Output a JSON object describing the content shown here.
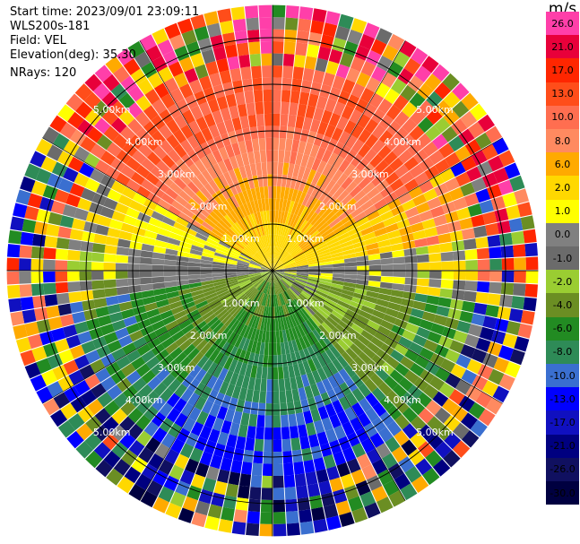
{
  "header": {
    "start_time": "Start time: 2023/09/01 23:09:11",
    "instrument": "WLS200s-181",
    "field": "Field: VEL",
    "elevation": "Elevation(deg): 35.30",
    "nrays": "NRays: 120"
  },
  "colorbar": {
    "units": "m/s",
    "labels": [
      "26.0",
      "21.0",
      "17.0",
      "13.0",
      "10.0",
      "8.0",
      "6.0",
      "2.0",
      "1.0",
      "0.0",
      "-1.0",
      "-2.0",
      "-4.0",
      "-6.0",
      "-8.0",
      "-10.0",
      "-13.0",
      "-17.0",
      "-21.0",
      "-26.0",
      "-30.0"
    ],
    "colors": [
      "#ff3fa9",
      "#e8003a",
      "#ff2600",
      "#ff4d1a",
      "#ff6e50",
      "#ff8a60",
      "#ffaa00",
      "#ffd800",
      "#ffff00",
      "#808080",
      "#6b6b6b",
      "#9acd32",
      "#6b8e23",
      "#228b22",
      "#2e8b57",
      "#3a6fd0",
      "#0000ff",
      "#1010c0",
      "#000080",
      "#101060",
      "#000040"
    ]
  },
  "chart_data": {
    "type": "polar-ppi",
    "field": "VEL",
    "units": "m/s",
    "n_rays": 120,
    "elevation_deg": 35.3,
    "range_ring_labels": [
      "1.00km",
      "2.00km",
      "3.00km",
      "4.00km",
      "5.00km"
    ],
    "range_rings_km": [
      1,
      2,
      3,
      4,
      5
    ],
    "max_range_km": 5.7,
    "sectors": [
      {
        "azimuth_from_deg": 300,
        "azimuth_to_deg": 60,
        "velocity_ms": 13.0
      },
      {
        "azimuth_from_deg": 60,
        "azimuth_to_deg": 80,
        "velocity_ms": 8.0
      },
      {
        "azimuth_from_deg": 80,
        "azimuth_to_deg": 100,
        "velocity_ms": 1.0
      },
      {
        "azimuth_from_deg": 100,
        "azimuth_to_deg": 140,
        "velocity_ms": -4.0
      },
      {
        "azimuth_from_deg": 140,
        "azimuth_to_deg": 220,
        "velocity_ms": -10.0
      },
      {
        "azimuth_from_deg": 220,
        "azimuth_to_deg": 260,
        "velocity_ms": -6.0
      },
      {
        "azimuth_from_deg": 260,
        "azimuth_to_deg": 280,
        "velocity_ms": 0.0
      },
      {
        "azimuth_from_deg": 280,
        "azimuth_to_deg": 300,
        "velocity_ms": 2.0
      }
    ]
  }
}
